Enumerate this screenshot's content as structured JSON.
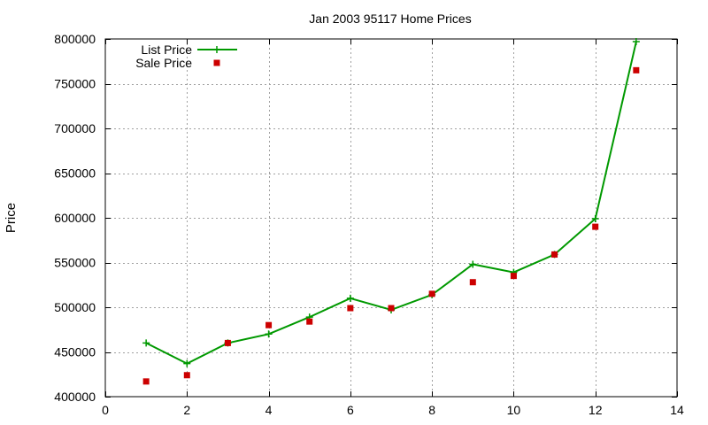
{
  "chart_data": {
    "type": "line",
    "title": "Jan 2003 95117 Home Prices",
    "xlabel": "",
    "ylabel": "Price",
    "xlim": [
      0,
      14
    ],
    "ylim": [
      400000,
      800000
    ],
    "xticks": [
      0,
      2,
      4,
      6,
      8,
      10,
      12,
      14
    ],
    "yticks": [
      400000,
      450000,
      500000,
      550000,
      600000,
      650000,
      700000,
      750000,
      800000
    ],
    "grid": true,
    "legend_position": "top-left",
    "series": [
      {
        "name": "List Price",
        "style": "line-with-plus-markers",
        "color": "#009900",
        "x": [
          1,
          2,
          3,
          4,
          5,
          6,
          7,
          8,
          9,
          10,
          11,
          12,
          13
        ],
        "y": [
          460000,
          437000,
          460000,
          470000,
          489000,
          510000,
          497000,
          514000,
          548000,
          539000,
          559000,
          599000,
          797000
        ]
      },
      {
        "name": "Sale Price",
        "style": "square-markers",
        "color": "#cc0000",
        "x": [
          1,
          2,
          3,
          4,
          5,
          6,
          7,
          8,
          9,
          10,
          11,
          12,
          13
        ],
        "y": [
          417000,
          424000,
          460000,
          480000,
          484000,
          499000,
          499000,
          515000,
          528000,
          535000,
          559000,
          590000,
          765000
        ]
      }
    ]
  }
}
